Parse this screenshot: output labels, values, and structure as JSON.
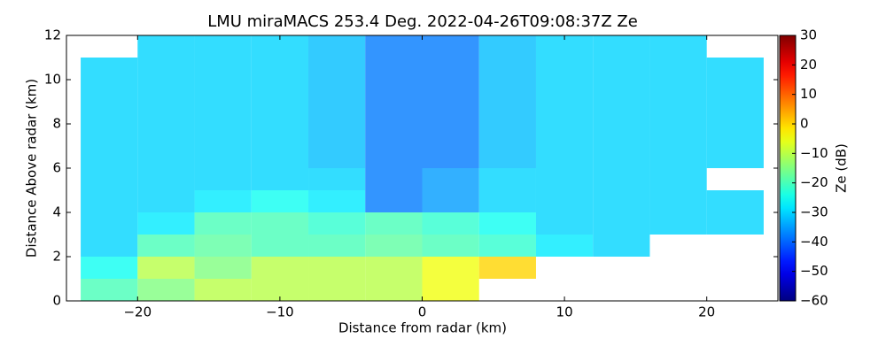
{
  "chart_data": {
    "type": "heatmap",
    "title": "LMU miraMACS 253.4 Deg. 2022-04-26T09:08:37Z  Ze",
    "x_label": "Distance from radar (km)",
    "y_label": "Distance Above radar  (km)",
    "colorbar_label": "Ze (dB)",
    "colormap": "jet",
    "xlim": [
      -25,
      25
    ],
    "ylim": [
      0,
      12
    ],
    "clim": [
      -60,
      30
    ],
    "xticks": [
      {
        "value": -20,
        "label": "−20"
      },
      {
        "value": -10,
        "label": "−10"
      },
      0,
      10,
      20
    ],
    "yticks": [
      0,
      2,
      4,
      6,
      8,
      10,
      12
    ],
    "cticks": [
      {
        "value": -60,
        "label": "−60"
      },
      {
        "value": -50,
        "label": "−50"
      },
      {
        "value": -40,
        "label": "−40"
      },
      {
        "value": -30,
        "label": "−30"
      },
      {
        "value": -20,
        "label": "−20"
      },
      {
        "value": -10,
        "label": "−10"
      },
      0,
      10,
      20,
      30
    ],
    "x_edges": [
      -24,
      -20,
      -16,
      -12,
      -8,
      -4,
      0,
      4,
      8,
      12,
      16,
      20,
      24
    ],
    "y_edges": [
      0,
      1,
      2,
      3,
      4,
      5,
      6,
      7,
      8,
      9,
      10,
      11,
      12
    ],
    "z": [
      [
        -20,
        -15,
        -10,
        -10,
        -10,
        -10,
        -5,
        null,
        null,
        null,
        null,
        null
      ],
      [
        -25,
        -10,
        -15,
        -10,
        -10,
        -10,
        -5,
        0,
        null,
        null,
        null,
        null
      ],
      [
        -30,
        -20,
        -18,
        -20,
        -20,
        -18,
        -20,
        -22,
        -28,
        -30,
        null,
        null
      ],
      [
        -30,
        -28,
        -20,
        -20,
        -22,
        -20,
        -22,
        -25,
        -30,
        -30,
        -30,
        -30
      ],
      [
        -30,
        -30,
        -28,
        -25,
        -28,
        -38,
        -35,
        -30,
        -30,
        -30,
        -30,
        -30
      ],
      [
        -30,
        -30,
        -30,
        -30,
        -30,
        -38,
        -35,
        -30,
        -30,
        -30,
        -30,
        null
      ],
      [
        -30,
        -30,
        -30,
        -30,
        -32,
        -38,
        -38,
        -32,
        -30,
        -30,
        -30,
        -30
      ],
      [
        -30,
        -30,
        -30,
        -30,
        -32,
        -38,
        -38,
        -32,
        -30,
        -30,
        -30,
        -30
      ],
      [
        -30,
        -30,
        -30,
        -30,
        -32,
        -38,
        -38,
        -32,
        -30,
        -30,
        -30,
        -30
      ],
      [
        -30,
        -30,
        -30,
        -30,
        -32,
        -38,
        -38,
        -32,
        -30,
        -30,
        -30,
        -30
      ],
      [
        -30,
        -30,
        -30,
        -30,
        -32,
        -38,
        -38,
        -32,
        -30,
        -30,
        -30,
        -30
      ],
      [
        null,
        -30,
        -30,
        -30,
        -32,
        -38,
        -38,
        -32,
        -30,
        -30,
        -30,
        null
      ]
    ]
  }
}
